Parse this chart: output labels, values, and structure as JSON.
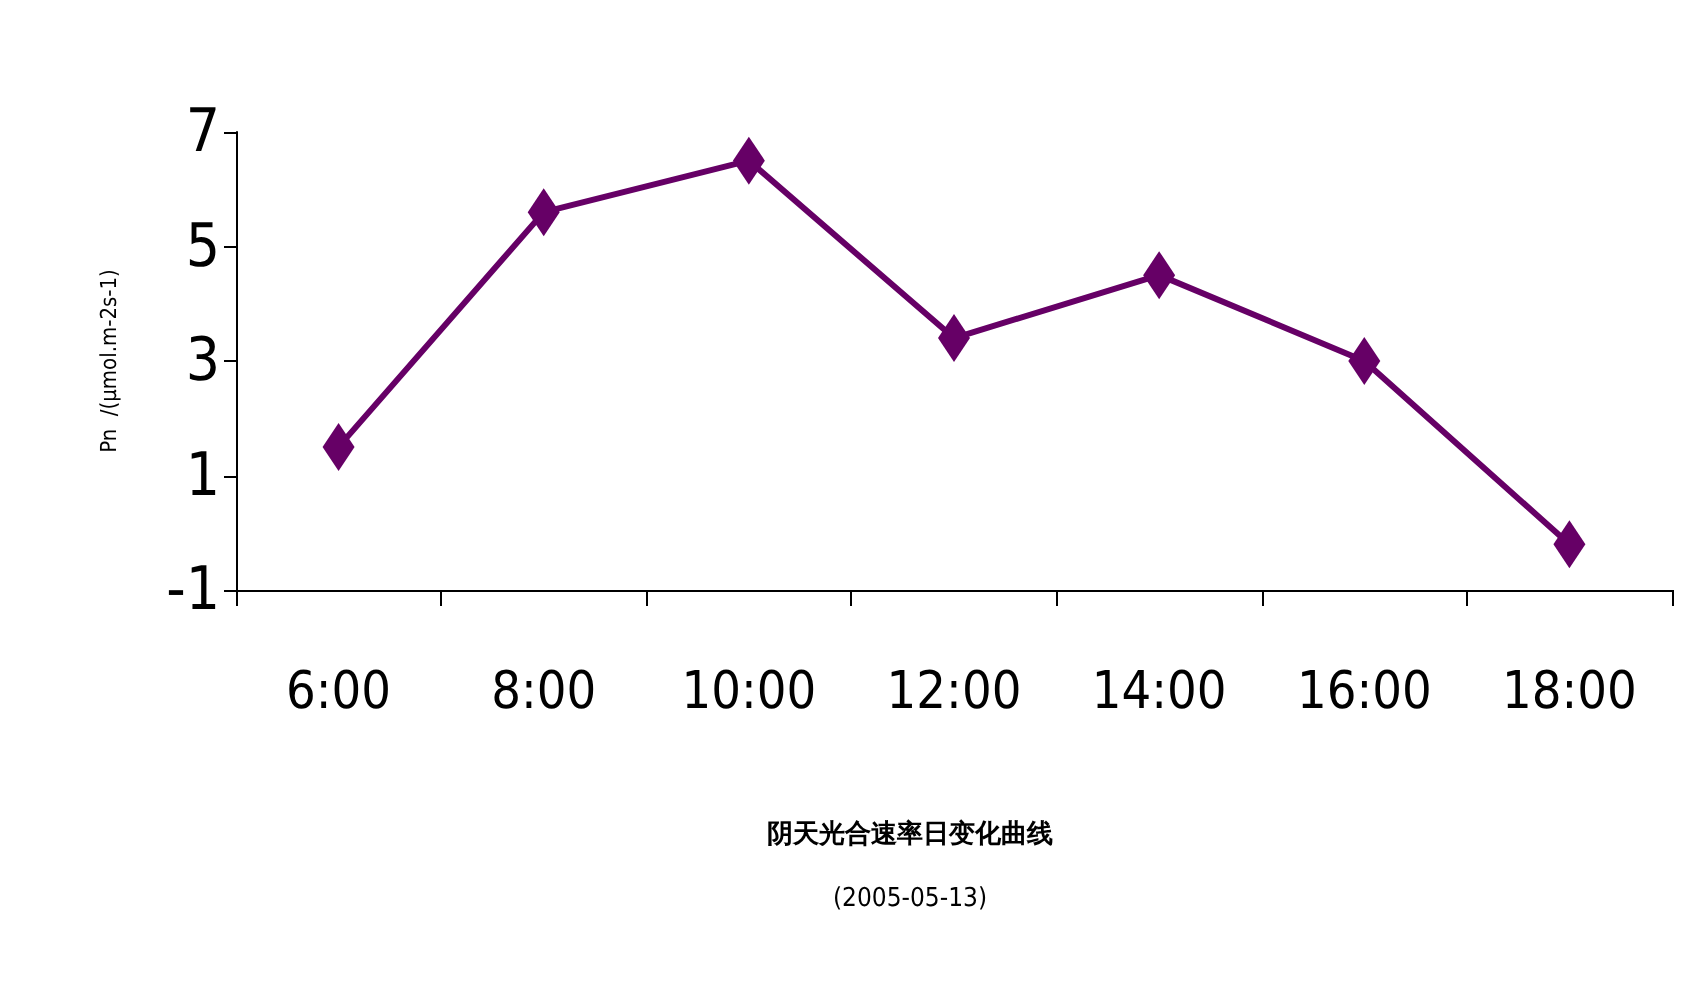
{
  "chart_data": {
    "type": "line",
    "title": "阴天光合速率日变化曲线",
    "subtitle": "(2005-05-13)",
    "ylabel": "Pn  /(μmol.m-2s-1)",
    "categories": [
      "6:00",
      "8:00",
      "10:00",
      "12:00",
      "14:00",
      "16:00",
      "18:00"
    ],
    "series": [
      {
        "color": "#660066",
        "values": [
          1.5,
          5.6,
          6.5,
          3.4,
          4.5,
          3.0,
          -0.2
        ]
      }
    ],
    "ylim": [
      -1,
      7
    ],
    "yticks": [
      -1,
      1,
      3,
      5,
      7
    ],
    "grid": false,
    "marker": "diamond",
    "line_style": "solid"
  }
}
